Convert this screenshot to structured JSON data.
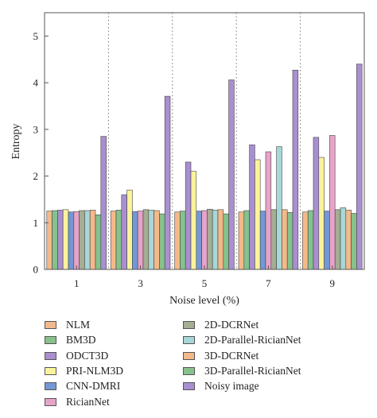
{
  "chart_data": {
    "type": "bar",
    "xlabel": "Noise level (%)",
    "ylabel": "Entropy",
    "ylim": [
      0,
      5.5
    ],
    "yticks": [
      "0",
      "1",
      "2",
      "3",
      "4",
      "5"
    ],
    "categories": [
      "1",
      "3",
      "5",
      "7",
      "9"
    ],
    "grid": false,
    "legend_placement": "bottom",
    "series": [
      {
        "name": "NLM",
        "color": "#f4b98a",
        "values": [
          1.25,
          1.25,
          1.23,
          1.23,
          1.23
        ]
      },
      {
        "name": "BM3D",
        "color": "#86c28b",
        "values": [
          1.26,
          1.27,
          1.25,
          1.26,
          1.26
        ]
      },
      {
        "name": "ODCT3D",
        "color": "#a98fd1",
        "values": [
          1.27,
          1.6,
          2.3,
          2.67,
          2.83
        ]
      },
      {
        "name": "PRI-NLM3D",
        "color": "#fbf39b",
        "values": [
          1.28,
          1.7,
          2.1,
          2.35,
          2.4
        ]
      },
      {
        "name": "CNN-DMRI",
        "color": "#7497d6",
        "values": [
          1.23,
          1.24,
          1.25,
          1.25,
          1.25
        ]
      },
      {
        "name": "RicianNet",
        "color": "#e8a3c9",
        "values": [
          1.24,
          1.25,
          1.26,
          2.52,
          2.87
        ]
      },
      {
        "name": "2D-DCRNet",
        "color": "#a5ad93",
        "values": [
          1.26,
          1.28,
          1.29,
          1.28,
          1.28
        ]
      },
      {
        "name": "2D-Parallel-RicianNet",
        "color": "#a7d7d7",
        "values": [
          1.26,
          1.27,
          1.27,
          2.63,
          1.32
        ]
      },
      {
        "name": "3D-DCRNet",
        "color": "#f4b98a",
        "values": [
          1.27,
          1.26,
          1.28,
          1.28,
          1.27
        ]
      },
      {
        "name": "3D-Parallel-RicianNet",
        "color": "#86c28b",
        "values": [
          1.17,
          1.19,
          1.19,
          1.22,
          1.2
        ]
      },
      {
        "name": "Noisy image",
        "color": "#a98fd1",
        "values": [
          2.85,
          3.71,
          4.06,
          4.27,
          4.4
        ]
      }
    ]
  }
}
